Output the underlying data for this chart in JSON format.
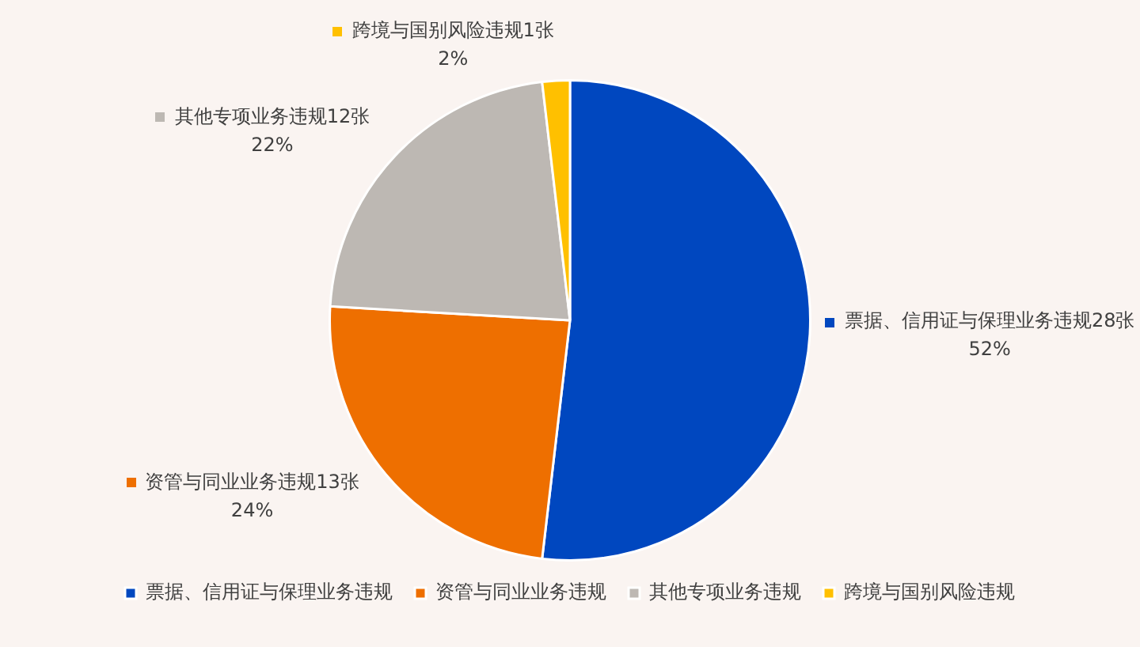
{
  "chart_data": {
    "type": "pie",
    "categories": [
      "票据、信用证与保理业务违规",
      "资管与同业业务违规",
      "其他专项业务违规",
      "跨境与国别风险违规"
    ],
    "values": [
      28,
      13,
      12,
      1
    ],
    "colors": [
      "#0047bf",
      "#ee6f00",
      "#bdb8b3",
      "#ffc000"
    ],
    "value_labels": [
      "28张\n52%",
      "13张\n24%",
      "12张\n22%",
      "1张\n2%"
    ],
    "legend": "bottom"
  }
}
